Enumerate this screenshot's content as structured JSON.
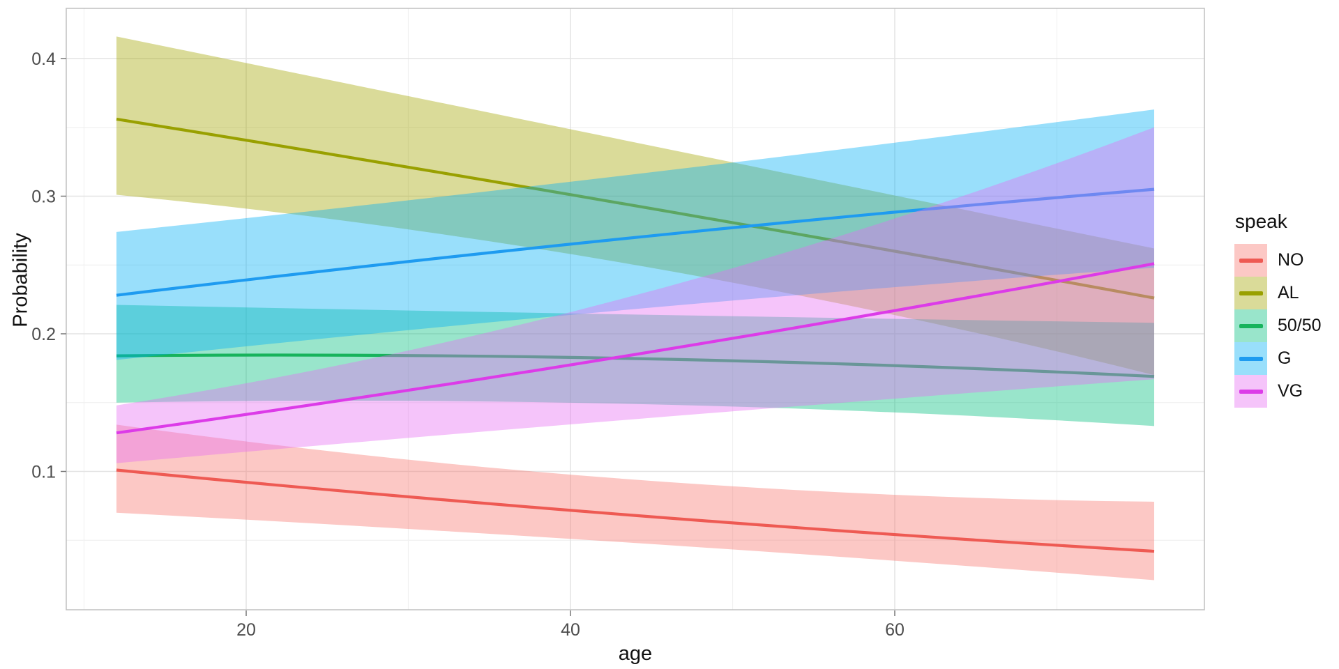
{
  "chart_data": {
    "type": "line",
    "title": "",
    "xlabel": "age",
    "ylabel": "Probability",
    "x_ticks": [
      20,
      40,
      60
    ],
    "x_tick_labels": [
      "20",
      "40",
      "60"
    ],
    "x_minor_ticks": [
      10,
      30,
      50,
      70
    ],
    "y_ticks": [
      0.1,
      0.2,
      0.3,
      0.4
    ],
    "y_tick_labels": [
      "0.1",
      "0.2",
      "0.3",
      "0.4"
    ],
    "y_minor_ticks": [
      0.05,
      0.15,
      0.25,
      0.35
    ],
    "xlim": [
      8.9,
      79.1
    ],
    "ylim": [
      0.0,
      0.4365
    ],
    "grid": "on",
    "legend": {
      "title": "speak",
      "position": "right"
    },
    "ribbon_opacity": 0.4,
    "x": [
      12,
      44,
      76
    ],
    "series": [
      {
        "label": "NO",
        "line_color": "#EE5A53",
        "fill_color": "#F8766D",
        "values": [
          0.101,
          0.068,
          0.042
        ],
        "upper": [
          0.134,
          0.094,
          0.078
        ],
        "lower": [
          0.07,
          0.048,
          0.021
        ]
      },
      {
        "label": "AL",
        "line_color": "#99A000",
        "fill_color": "#A3A500",
        "values": [
          0.356,
          0.293,
          0.226
        ],
        "upper": [
          0.416,
          0.339,
          0.262
        ],
        "lower": [
          0.301,
          0.25,
          0.17
        ]
      },
      {
        "label": "50/50",
        "line_color": "#17B35C",
        "fill_color": "#00BF7D",
        "values": [
          0.184,
          0.182,
          0.169
        ],
        "upper": [
          0.221,
          0.214,
          0.208
        ],
        "lower": [
          0.15,
          0.149,
          0.133
        ]
      },
      {
        "label": "G",
        "line_color": "#1E9BF0",
        "fill_color": "#00B0F6",
        "values": [
          0.228,
          0.27,
          0.305
        ],
        "upper": [
          0.274,
          0.316,
          0.363
        ],
        "lower": [
          0.181,
          0.218,
          0.248
        ]
      },
      {
        "label": "VG",
        "line_color": "#DC3BE8",
        "fill_color": "#E76BF3",
        "values": [
          0.128,
          0.185,
          0.251
        ],
        "upper": [
          0.148,
          0.228,
          0.35
        ],
        "lower": [
          0.106,
          0.138,
          0.167
        ]
      }
    ],
    "colors": {
      "grid_major": "#e3e3e3",
      "grid_minor": "#f1f1f1",
      "panel_border": "#c0c0c0",
      "tick_mark": "#777777",
      "tick_label": "#4d4d4d"
    }
  }
}
